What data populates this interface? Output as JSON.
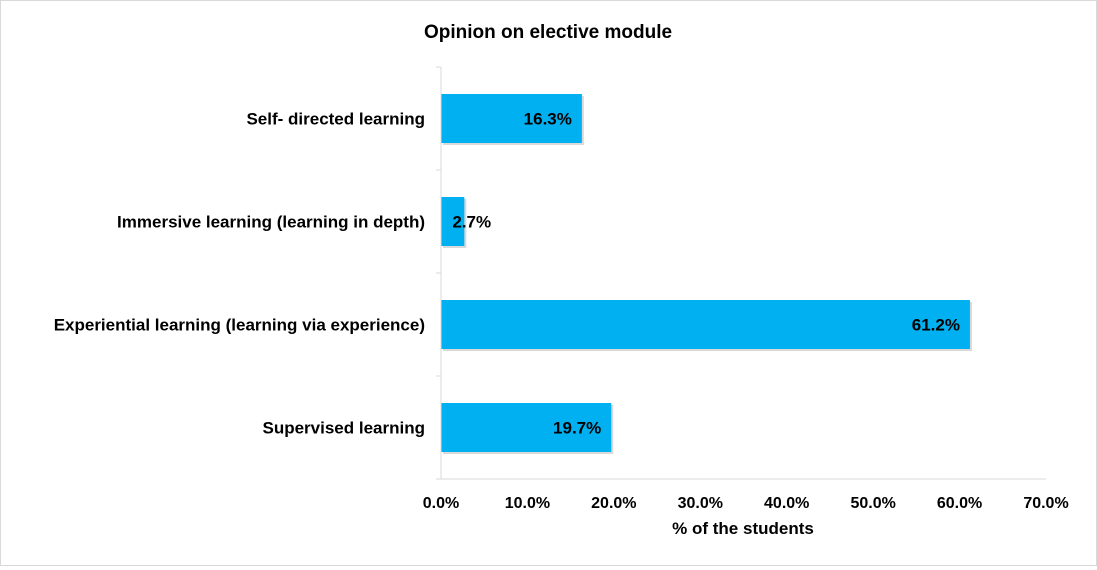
{
  "chart_data": {
    "type": "bar",
    "orientation": "horizontal",
    "title": "Opinion on elective module",
    "xlabel": "% of the students",
    "ylabel": "",
    "categories": [
      "Self- directed learning",
      "Immersive learning (learning in depth)",
      "Experiential learning (learning via experience)",
      "Supervised learning"
    ],
    "values": [
      16.3,
      2.7,
      61.2,
      19.7
    ],
    "data_labels": [
      "16.3%",
      "2.7%",
      "61.2%",
      "19.7%"
    ],
    "xlim": [
      0,
      70
    ],
    "x_ticks": [
      0,
      10,
      20,
      30,
      40,
      50,
      60,
      70
    ],
    "x_tick_labels": [
      "0.0%",
      "10.0%",
      "20.0%",
      "30.0%",
      "40.0%",
      "50.0%",
      "60.0%",
      "70.0%"
    ],
    "bar_color": "#00b0f0",
    "grid": false,
    "legend": "none"
  }
}
